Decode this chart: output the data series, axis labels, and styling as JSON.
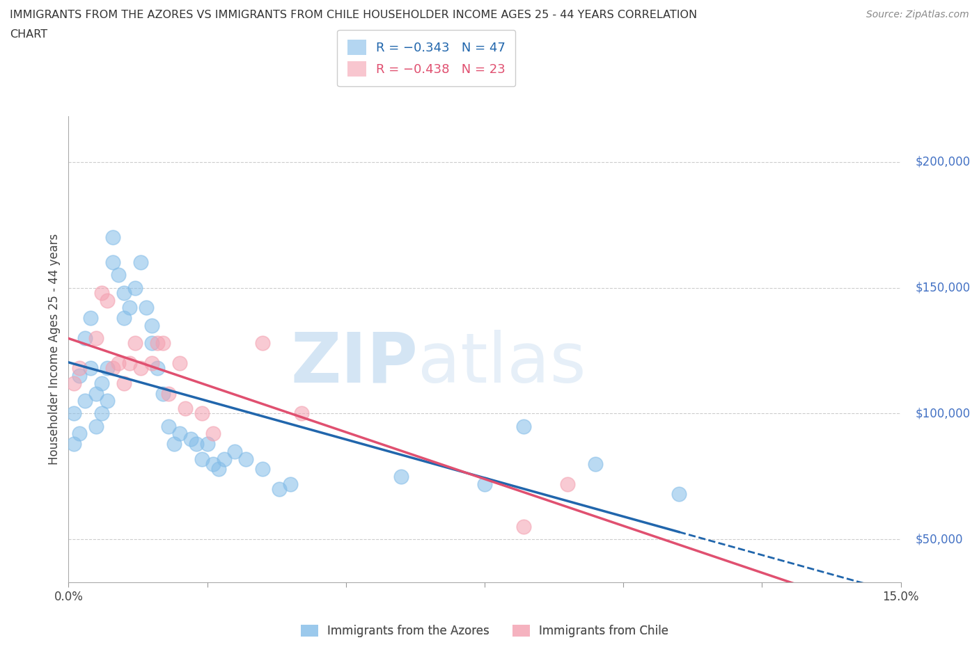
{
  "title_line1": "IMMIGRANTS FROM THE AZORES VS IMMIGRANTS FROM CHILE HOUSEHOLDER INCOME AGES 25 - 44 YEARS CORRELATION",
  "title_line2": "CHART",
  "source": "Source: ZipAtlas.com",
  "ylabel": "Householder Income Ages 25 - 44 years",
  "xlim": [
    0.0,
    0.15
  ],
  "ylim": [
    33000,
    218000
  ],
  "yticks": [
    50000,
    100000,
    150000,
    200000
  ],
  "yticklabels": [
    "$50,000",
    "$100,000",
    "$150,000",
    "$200,000"
  ],
  "azores_color": "#82bce8",
  "chile_color": "#f4a0b0",
  "azores_line_color": "#2166ac",
  "chile_line_color": "#e05070",
  "legend_label_azores": "R = −0.343   N = 47",
  "legend_label_chile": "R = −0.438   N = 23",
  "legend_label_bottom_azores": "Immigrants from the Azores",
  "legend_label_bottom_chile": "Immigrants from Chile",
  "watermark_zip": "ZIP",
  "watermark_atlas": "atlas",
  "azores_x": [
    0.001,
    0.001,
    0.002,
    0.002,
    0.003,
    0.003,
    0.004,
    0.004,
    0.005,
    0.005,
    0.006,
    0.006,
    0.007,
    0.007,
    0.008,
    0.008,
    0.009,
    0.01,
    0.01,
    0.011,
    0.012,
    0.013,
    0.014,
    0.015,
    0.015,
    0.016,
    0.017,
    0.018,
    0.019,
    0.02,
    0.022,
    0.023,
    0.024,
    0.025,
    0.026,
    0.027,
    0.028,
    0.03,
    0.032,
    0.035,
    0.038,
    0.04,
    0.06,
    0.075,
    0.082,
    0.095,
    0.11
  ],
  "azores_y": [
    100000,
    88000,
    115000,
    92000,
    130000,
    105000,
    138000,
    118000,
    108000,
    95000,
    112000,
    100000,
    118000,
    105000,
    160000,
    170000,
    155000,
    138000,
    148000,
    142000,
    150000,
    160000,
    142000,
    135000,
    128000,
    118000,
    108000,
    95000,
    88000,
    92000,
    90000,
    88000,
    82000,
    88000,
    80000,
    78000,
    82000,
    85000,
    82000,
    78000,
    70000,
    72000,
    75000,
    72000,
    95000,
    80000,
    68000
  ],
  "chile_x": [
    0.001,
    0.002,
    0.005,
    0.006,
    0.007,
    0.008,
    0.009,
    0.01,
    0.011,
    0.012,
    0.013,
    0.015,
    0.016,
    0.017,
    0.018,
    0.02,
    0.021,
    0.024,
    0.026,
    0.035,
    0.042,
    0.082,
    0.09
  ],
  "chile_y": [
    112000,
    118000,
    130000,
    148000,
    145000,
    118000,
    120000,
    112000,
    120000,
    128000,
    118000,
    120000,
    128000,
    128000,
    108000,
    120000,
    102000,
    100000,
    92000,
    128000,
    100000,
    55000,
    72000
  ]
}
